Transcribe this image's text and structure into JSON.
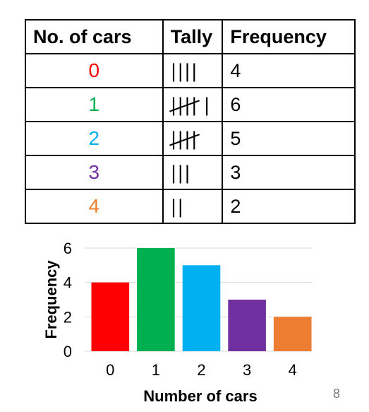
{
  "table": {
    "headers": [
      "No. of cars",
      "Tally",
      "Frequency"
    ],
    "rows": [
      {
        "cars": "0",
        "tally_marks": 4,
        "frequency": "4",
        "color": "#ff0000"
      },
      {
        "cars": "1",
        "tally_marks": 6,
        "frequency": "6",
        "color": "#00b050"
      },
      {
        "cars": "2",
        "tally_marks": 5,
        "frequency": "5",
        "color": "#00b0f0"
      },
      {
        "cars": "3",
        "tally_marks": 3,
        "frequency": "3",
        "color": "#7030a0"
      },
      {
        "cars": "4",
        "tally_marks": 2,
        "frequency": "2",
        "color": "#ed7d31"
      }
    ]
  },
  "chart_data": {
    "type": "bar",
    "categories": [
      "0",
      "1",
      "2",
      "3",
      "4"
    ],
    "values": [
      4,
      6,
      5,
      3,
      2
    ],
    "colors": [
      "#ff0000",
      "#00b050",
      "#00b0f0",
      "#7030a0",
      "#ed7d31"
    ],
    "xlabel": "Number of cars",
    "ylabel": "Frequency",
    "ylim": [
      0,
      6
    ],
    "yticks": [
      "0",
      "2",
      "4",
      "6"
    ],
    "grid": true
  },
  "page_number": "8"
}
